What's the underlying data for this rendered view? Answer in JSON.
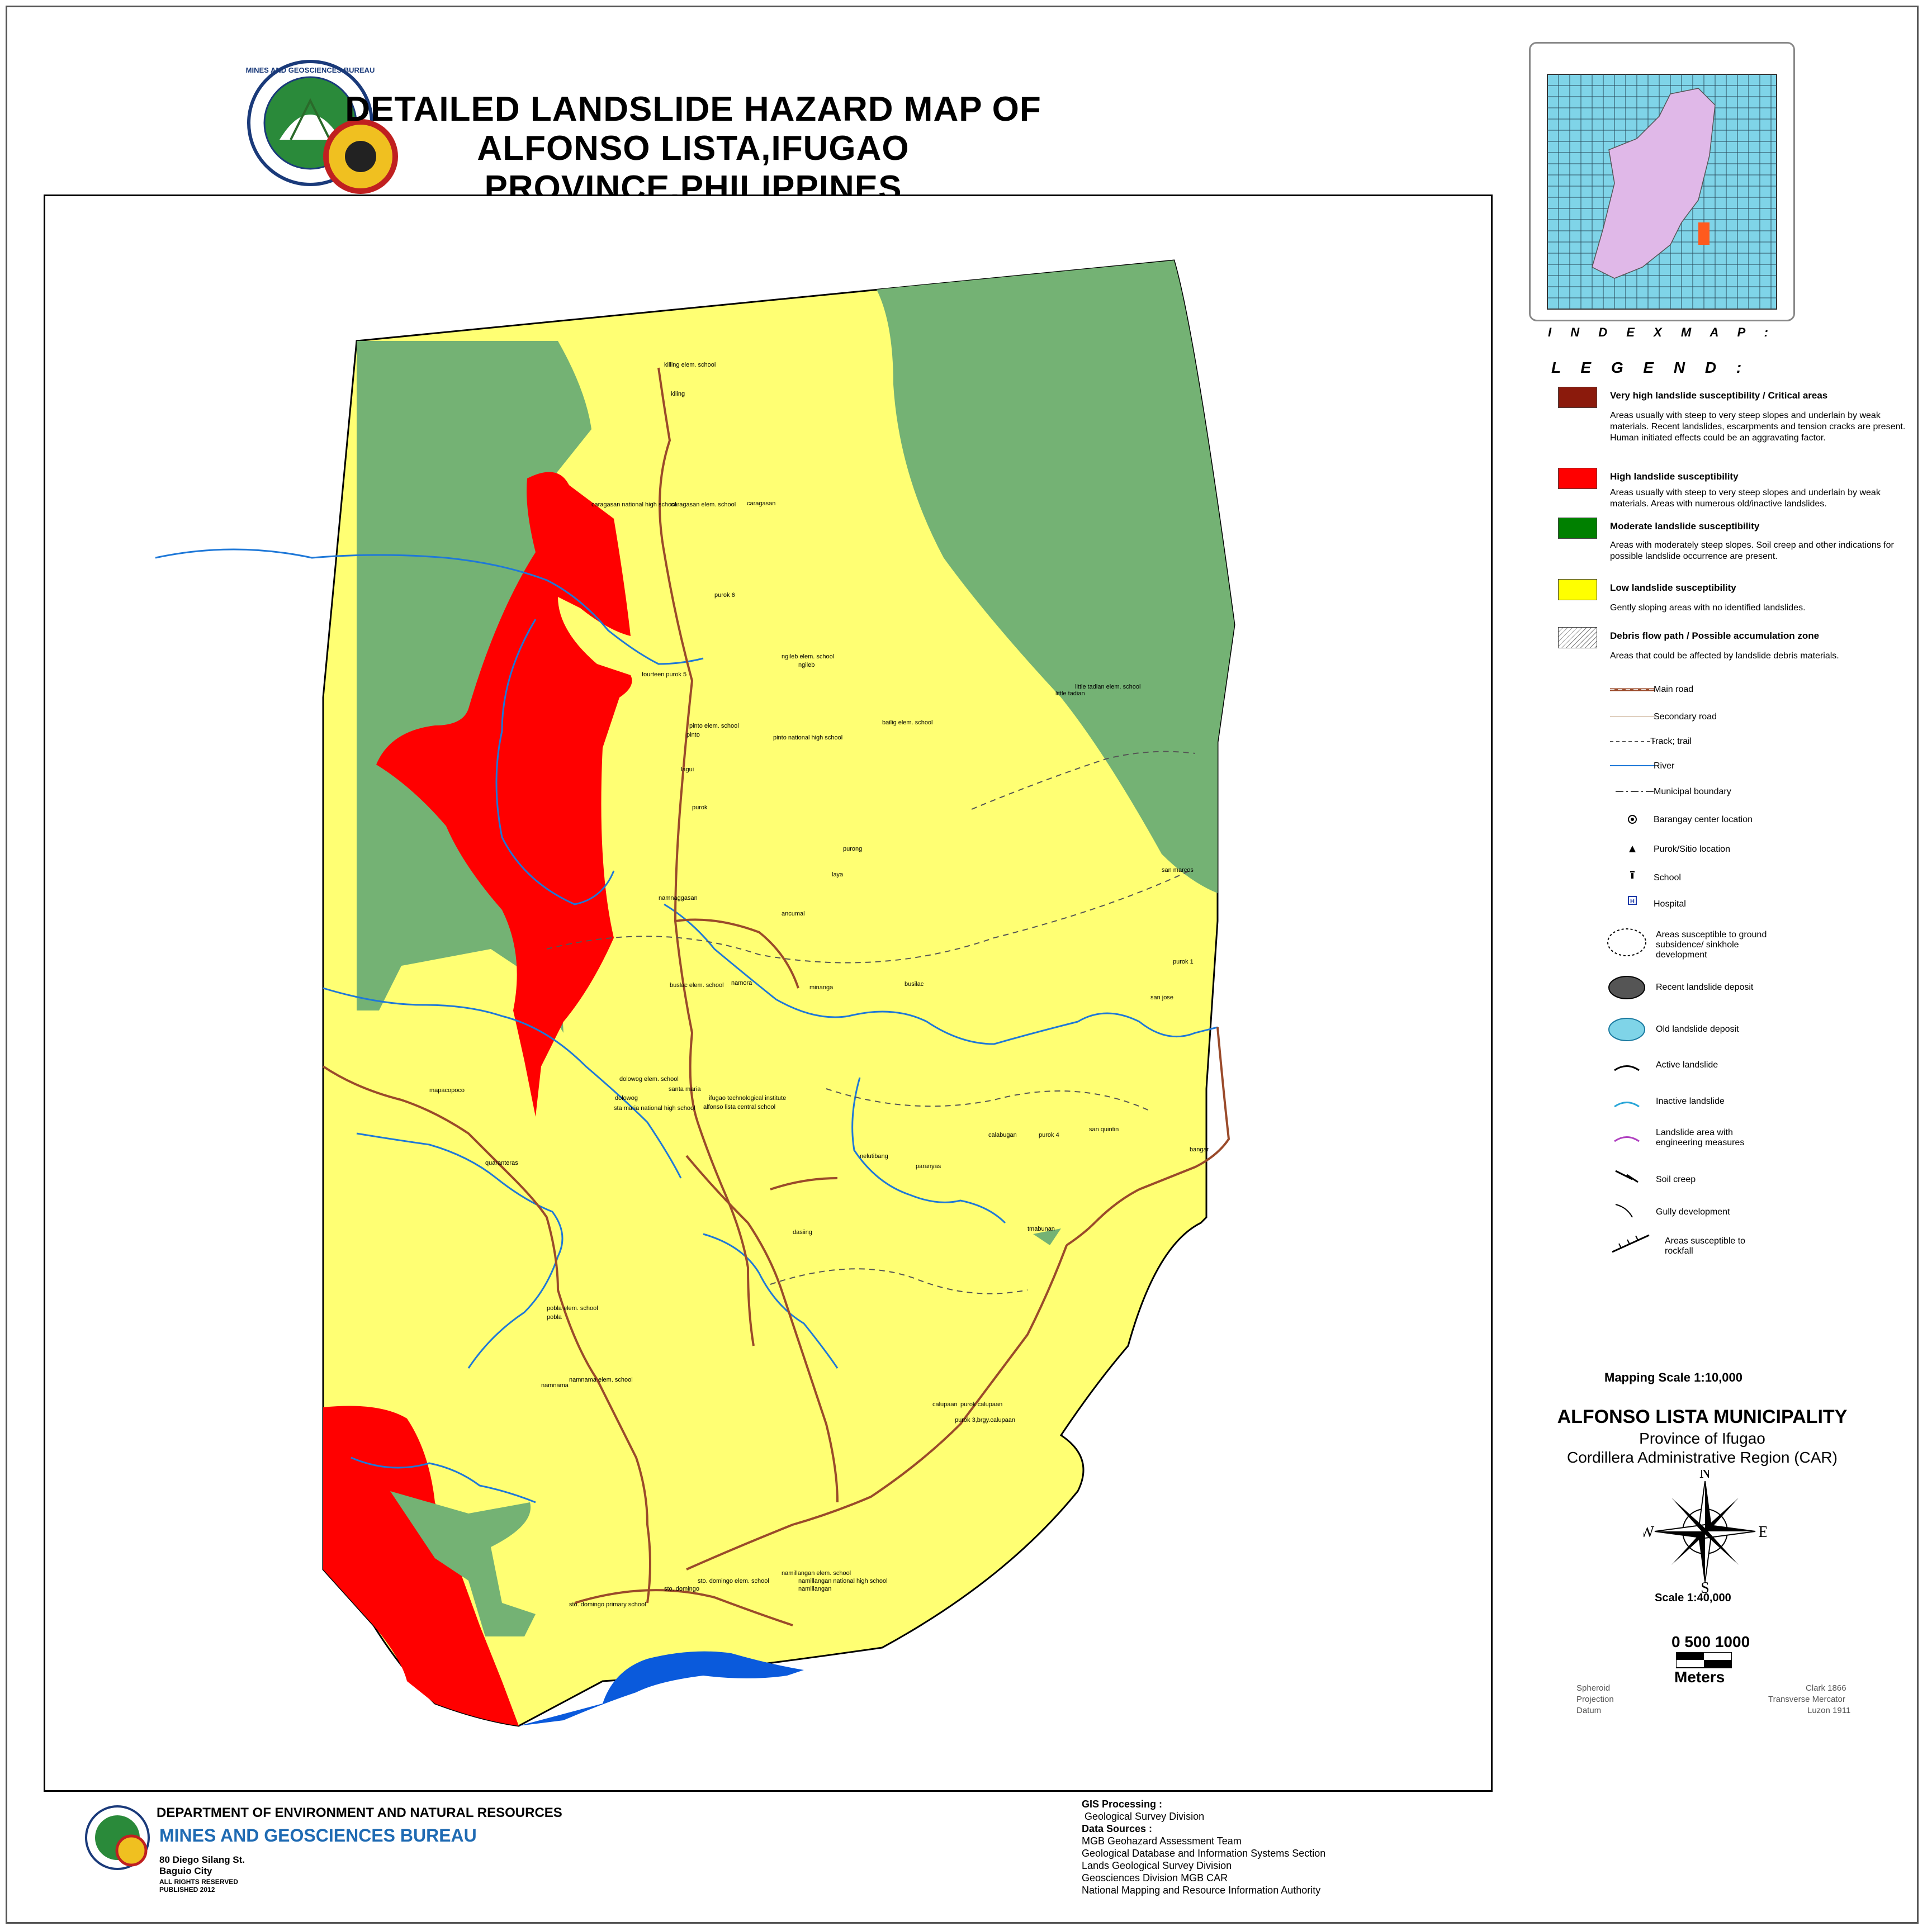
{
  "title": {
    "line1": "DETAILED LANDSLIDE HAZARD MAP OF",
    "line2": "ALFONSO LISTA,IFUGAO PROVINCE,PHILIPPINES"
  },
  "logo": {
    "text_top": "MINES AND GEOSCIENCES BUREAU",
    "text_bottom": "DEPARTMENT OF ENVIRONMENT AND NATURAL RESOURCES"
  },
  "colors": {
    "very_high": "#8b1a0c",
    "high": "#ff0000",
    "moderate": "#008000",
    "moderate_map": "#74b274",
    "low": "#ffff73",
    "river": "#1e78d8",
    "water_body": "#0a5adc",
    "road": "#9a4a2a",
    "index_water": "#7fd4e8",
    "index_land": "#e0b8e8",
    "index_highlight": "#ff5a1e"
  },
  "index_map": {
    "title": "I N D E X   M A P :"
  },
  "legend": {
    "title": "L E G E N D :",
    "zones": [
      {
        "key": "very_high",
        "heading": "Very high landslide susceptibility / Critical areas",
        "description": "Areas usually with steep to very steep slopes and underlain by weak materials. Recent landslides, escarpments and tension cracks are present. Human initiated effects could be an aggravating factor."
      },
      {
        "key": "high",
        "heading": "High landslide susceptibility",
        "description": "Areas usually with steep to very steep slopes and underlain by weak materials. Areas with numerous old/inactive landslides."
      },
      {
        "key": "moderate",
        "heading": "Moderate landslide susceptibility",
        "description": "Areas with moderately steep slopes. Soil creep and other indications for possible landslide occurrence are present."
      },
      {
        "key": "low",
        "heading": "Low landslide susceptibility",
        "description": "Gently sloping areas with no identified landslides."
      },
      {
        "key": "debris",
        "heading": "Debris flow path / Possible accumulation zone",
        "description": "Areas that could be affected by landslide debris materials."
      }
    ],
    "symbols": [
      {
        "icon": "main-road-icon",
        "label": "Main road"
      },
      {
        "icon": "secondary-road-icon",
        "label": "Secondary road"
      },
      {
        "icon": "track-trail-icon",
        "label": "Track; trail"
      },
      {
        "icon": "river-icon",
        "label": "River"
      },
      {
        "icon": "municipal-boundary-icon",
        "label": "Municipal boundary"
      },
      {
        "icon": "barangay-center-icon",
        "label": "Barangay center location"
      },
      {
        "icon": "purok-sitio-icon",
        "label": "Purok/Sitio location"
      },
      {
        "icon": "school-icon",
        "label": "School"
      },
      {
        "icon": "hospital-icon",
        "label": "Hospital"
      },
      {
        "icon": "ground-subsidence-icon",
        "label": "Areas susceptible to ground subsidence/ sinkhole development"
      },
      {
        "icon": "recent-landslide-deposit-icon",
        "label": "Recent landslide deposit"
      },
      {
        "icon": "old-landslide-deposit-icon",
        "label": "Old landslide deposit"
      },
      {
        "icon": "active-landslide-icon",
        "label": "Active landslide"
      },
      {
        "icon": "inactive-landslide-icon",
        "label": "Inactive landslide"
      },
      {
        "icon": "engineering-measures-icon",
        "label": "Landslide area with engineering measures"
      },
      {
        "icon": "soil-creep-icon",
        "label": "Soil creep"
      },
      {
        "icon": "gully-development-icon",
        "label": "Gully development"
      },
      {
        "icon": "rockfall-icon",
        "label": "Areas susceptible to rockfall"
      }
    ]
  },
  "scale": {
    "mapping": "Mapping Scale 1:10,000",
    "printed": "Scale 1:40,000",
    "bar_numbers": "0  500 1000",
    "unit": "Meters"
  },
  "location": {
    "municipality": "ALFONSO LISTA  MUNICIPALITY",
    "province": "Province of Ifugao",
    "region": "Cordillera Administrative Region (CAR)"
  },
  "compass": {
    "n": "N",
    "s": "S",
    "e": "E",
    "w": "W"
  },
  "projection": [
    {
      "label": "Spheroid",
      "value": "Clark 1866"
    },
    {
      "label": "Projection",
      "value": "Transverse Mercator"
    },
    {
      "label": "Datum",
      "value": "Luzon 1911"
    }
  ],
  "footer": {
    "department": "DEPARTMENT OF ENVIRONMENT AND NATURAL RESOURCES",
    "bureau": "MINES AND GEOSCIENCES BUREAU",
    "address1": "80 Diego Silang St.",
    "address2": "Baguio City",
    "rights": "ALL RIGHTS RESERVED",
    "published": "PUBLISHED 2012",
    "gis_heading": "GIS Processing :",
    "gis_value": "Geological Survey Division",
    "sources_heading": "Data Sources :",
    "sources": [
      "MGB Geohazard Assessment Team",
      "Geological Database and Information Systems Section",
      "Lands Geological Survey Division",
      "Geosciences Division MGB CAR",
      "National Mapping and Resource Information Authority"
    ]
  },
  "place_labels": [
    "killing elem. school",
    "kiling",
    "caragasan national high school",
    "caragasan elem. school",
    "caragasan",
    "purok 6",
    "ngileb elem. school",
    "ngileb",
    "fourteen purok 5",
    "pinto elem. school",
    "pinto",
    "pinto national high school",
    "bailig elem. school",
    "little tadian elem. school",
    "little tadian",
    "lagui",
    "purok",
    "purong",
    "laya",
    "namnaggasan",
    "ancumal",
    "san marcos",
    "purok 1",
    "san jose",
    "busilac",
    "buslac elem. school",
    "namora",
    "minanga",
    "dolowog elem. school",
    "dolowog",
    "sta maria national high school",
    "santa maria",
    "ifugao technological institute",
    "alfonso lista central school",
    "mapacopoco",
    "quaranteras",
    "calabugan",
    "purok 4",
    "san quintin",
    "bangar",
    "nelutibang",
    "paranyas",
    "dasiing",
    "pobla elem. school",
    "pobla",
    "namnama elem. school",
    "namnama",
    "calupaan",
    "purok calupaan",
    "purok 3,brgy.calupaan",
    "namillangan elem. school",
    "namillangan national high school",
    "namillangan",
    "sto. domingo",
    "sto. domingo elem. school",
    "sto. domingo primary school",
    "tmabunan"
  ]
}
